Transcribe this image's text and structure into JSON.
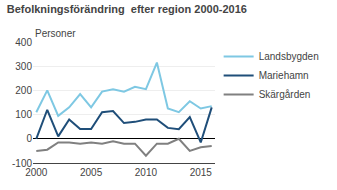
{
  "chart_data": {
    "type": "line",
    "title": "Befolkningsförändring  efter region 2000-2016",
    "ylabel": "Personer",
    "x": [
      2000,
      2001,
      2002,
      2003,
      2004,
      2005,
      2006,
      2007,
      2008,
      2009,
      2010,
      2011,
      2012,
      2013,
      2014,
      2015,
      2016
    ],
    "series": [
      {
        "name": "Landsbygden",
        "color": "#7EC8E3",
        "values": [
          110,
          200,
          95,
          130,
          185,
          130,
          195,
          205,
          195,
          215,
          205,
          315,
          125,
          110,
          155,
          125,
          135
        ]
      },
      {
        "name": "Mariehamn",
        "color": "#1F4E79",
        "values": [
          0,
          120,
          10,
          80,
          40,
          40,
          110,
          115,
          65,
          70,
          80,
          80,
          45,
          40,
          90,
          -15,
          130
        ]
      },
      {
        "name": "Skärgården",
        "color": "#808080",
        "values": [
          -50,
          -45,
          -15,
          -15,
          -20,
          -15,
          -20,
          -10,
          -20,
          -20,
          -70,
          -20,
          -20,
          0,
          -50,
          -35,
          -30
        ]
      }
    ],
    "xlim": [
      1999.7,
      2016.3
    ],
    "xticks": [
      2000,
      2005,
      2010,
      2015
    ],
    "ylim": [
      -100,
      400
    ],
    "yticks": [
      -100,
      0,
      100,
      200,
      300,
      400
    ],
    "grid": "y",
    "legend": "right"
  }
}
